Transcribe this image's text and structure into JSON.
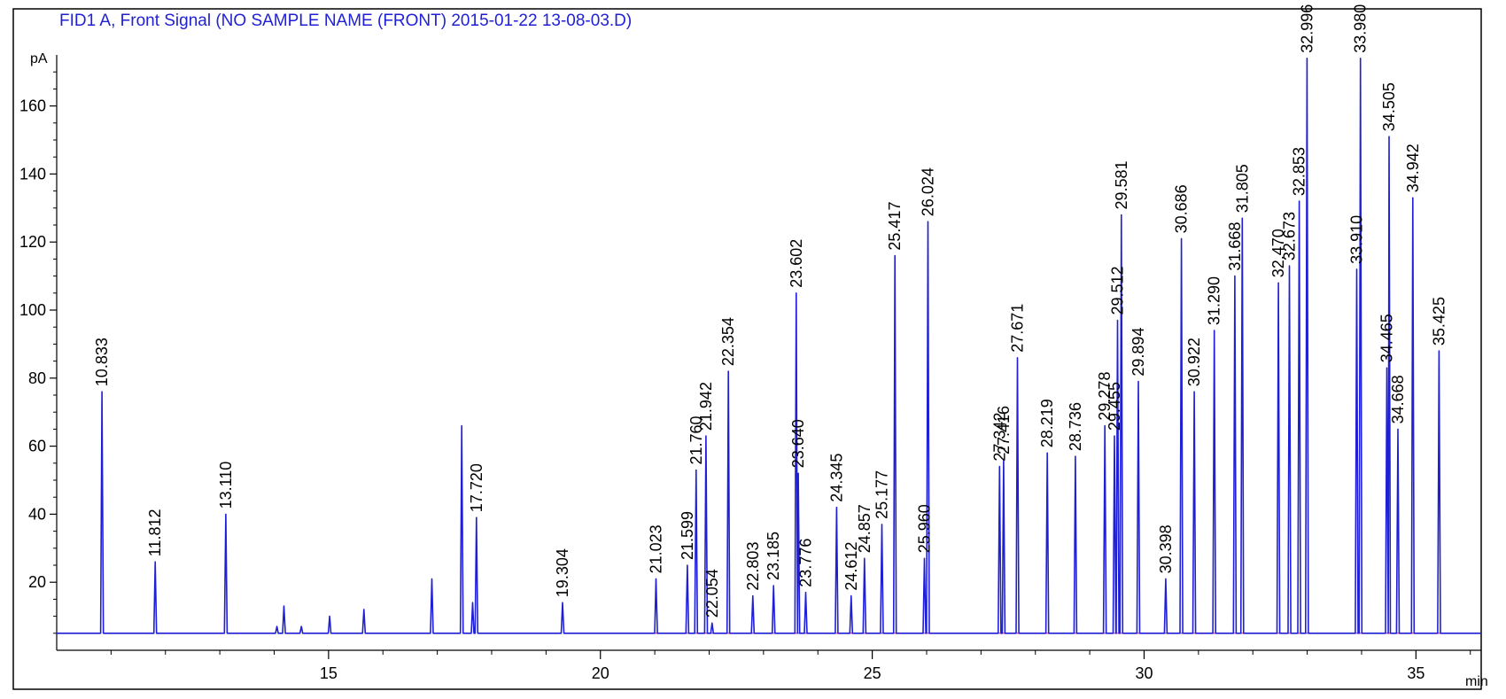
{
  "chart_data": {
    "type": "line",
    "title": "FID1 A, Front Signal (NO SAMPLE NAME (FRONT) 2015-01-22 13-08-03.D)",
    "xlabel": "min",
    "ylabel": "pA",
    "xlim": [
      10.0,
      36.2
    ],
    "ylim": [
      0,
      175
    ],
    "baseline": 5,
    "x_ticks": [
      15,
      20,
      25,
      30,
      35
    ],
    "x_tick_labels": [
      "15",
      "20",
      "25",
      "30",
      "35"
    ],
    "y_ticks": [
      20,
      40,
      60,
      80,
      100,
      120,
      140,
      160
    ],
    "y_tick_labels": [
      "20",
      "40",
      "60",
      "80",
      "100",
      "120",
      "140",
      "160"
    ],
    "series": [
      {
        "color": "#1f1fd6",
        "labeled_peaks": [
          {
            "rt": 10.833,
            "label": "10.833",
            "height": 76
          },
          {
            "rt": 11.812,
            "label": "11.812",
            "height": 26
          },
          {
            "rt": 13.11,
            "label": "13.110",
            "height": 40
          },
          {
            "rt": 17.72,
            "label": "17.720",
            "height": 39
          },
          {
            "rt": 19.304,
            "label": "19.304",
            "height": 14
          },
          {
            "rt": 21.023,
            "label": "21.023",
            "height": 21
          },
          {
            "rt": 21.599,
            "label": "21.599",
            "height": 25
          },
          {
            "rt": 21.76,
            "label": "21.760",
            "height": 53
          },
          {
            "rt": 21.942,
            "label": "21.942",
            "height": 63
          },
          {
            "rt": 22.054,
            "label": "22.054",
            "height": 8
          },
          {
            "rt": 22.354,
            "label": "22.354",
            "height": 82
          },
          {
            "rt": 22.803,
            "label": "22.803",
            "height": 16
          },
          {
            "rt": 23.185,
            "label": "23.185",
            "height": 19
          },
          {
            "rt": 23.602,
            "label": "23.602",
            "height": 105
          },
          {
            "rt": 23.64,
            "label": "23.640",
            "height": 52
          },
          {
            "rt": 23.776,
            "label": "23.776",
            "height": 17
          },
          {
            "rt": 24.345,
            "label": "24.345",
            "height": 42
          },
          {
            "rt": 24.612,
            "label": "24.612",
            "height": 16
          },
          {
            "rt": 24.857,
            "label": "24.857",
            "height": 27
          },
          {
            "rt": 25.177,
            "label": "25.177",
            "height": 37
          },
          {
            "rt": 25.417,
            "label": "25.417",
            "height": 116
          },
          {
            "rt": 25.96,
            "label": "25.960",
            "height": 27
          },
          {
            "rt": 26.024,
            "label": "26.024",
            "height": 126
          },
          {
            "rt": 27.342,
            "label": "27.342",
            "height": 54
          },
          {
            "rt": 27.416,
            "label": "27.416",
            "height": 56
          },
          {
            "rt": 27.671,
            "label": "27.671",
            "height": 86
          },
          {
            "rt": 28.219,
            "label": "28.219",
            "height": 58
          },
          {
            "rt": 28.736,
            "label": "28.736",
            "height": 57
          },
          {
            "rt": 29.278,
            "label": "29.278",
            "height": 66
          },
          {
            "rt": 29.455,
            "label": "29.455",
            "height": 63
          },
          {
            "rt": 29.512,
            "label": "29.512",
            "height": 97
          },
          {
            "rt": 29.581,
            "label": "29.581",
            "height": 128
          },
          {
            "rt": 29.894,
            "label": "29.894",
            "height": 79
          },
          {
            "rt": 30.398,
            "label": "30.398",
            "height": 21
          },
          {
            "rt": 30.686,
            "label": "30.686",
            "height": 121
          },
          {
            "rt": 30.922,
            "label": "30.922",
            "height": 76
          },
          {
            "rt": 31.29,
            "label": "31.290",
            "height": 94
          },
          {
            "rt": 31.668,
            "label": "31.668",
            "height": 110
          },
          {
            "rt": 31.805,
            "label": "31.805",
            "height": 127
          },
          {
            "rt": 32.47,
            "label": "32.470",
            "height": 108
          },
          {
            "rt": 32.673,
            "label": "32.673",
            "height": 113
          },
          {
            "rt": 32.853,
            "label": "32.853",
            "height": 132
          },
          {
            "rt": 32.996,
            "label": "32.996",
            "height": 174
          },
          {
            "rt": 33.91,
            "label": "33.910",
            "height": 112
          },
          {
            "rt": 33.98,
            "label": "33.980",
            "height": 174
          },
          {
            "rt": 34.465,
            "label": "34.465",
            "height": 83
          },
          {
            "rt": 34.505,
            "label": "34.505",
            "height": 151
          },
          {
            "rt": 34.668,
            "label": "34.668",
            "height": 65
          },
          {
            "rt": 34.942,
            "label": "34.942",
            "height": 133
          },
          {
            "rt": 35.425,
            "label": "35.425",
            "height": 88
          }
        ],
        "unlabeled_peaks": [
          {
            "rt": 14.05,
            "height": 7
          },
          {
            "rt": 14.18,
            "height": 13
          },
          {
            "rt": 14.5,
            "height": 7
          },
          {
            "rt": 15.02,
            "height": 10
          },
          {
            "rt": 15.65,
            "height": 12
          },
          {
            "rt": 16.9,
            "height": 21
          },
          {
            "rt": 17.45,
            "height": 66
          },
          {
            "rt": 17.65,
            "height": 14
          }
        ]
      },
      {
        "color": "#e0249a",
        "kind": "integration baseline"
      }
    ]
  }
}
